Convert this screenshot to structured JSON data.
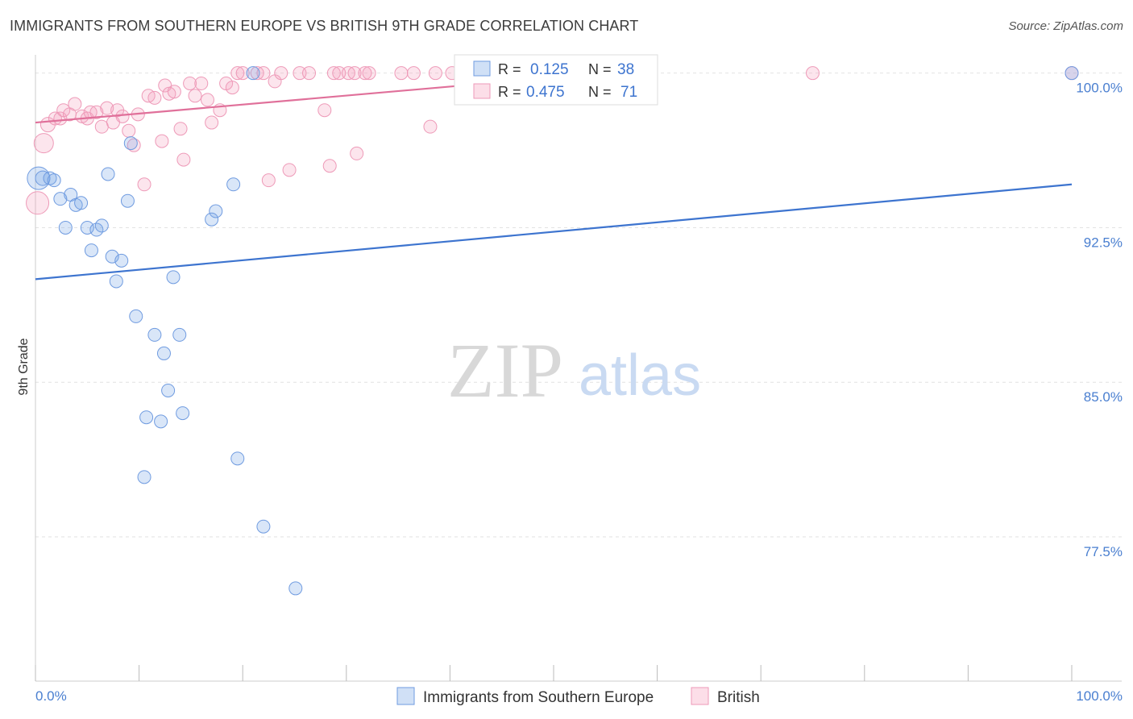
{
  "title": "IMMIGRANTS FROM SOUTHERN EUROPE VS BRITISH 9TH GRADE CORRELATION CHART",
  "source": "Source: ZipAtlas.com",
  "watermark": {
    "zip": "ZIP",
    "atlas": "atlas"
  },
  "colors": {
    "blue": "#3d74cf",
    "blue_fill": "rgba(120,165,230,0.28)",
    "blue_stroke": "#6f9be0",
    "pink": "#e0709a",
    "pink_fill": "rgba(245,160,190,0.28)",
    "pink_stroke": "#ee9ab8"
  },
  "legend_top": {
    "r_label": "R =",
    "n_label": "N =",
    "series": [
      {
        "r": "0.125",
        "n": "38"
      },
      {
        "r": "0.475",
        "n": "71"
      }
    ]
  },
  "chart_data": {
    "type": "scatter",
    "title": "IMMIGRANTS FROM SOUTHERN EUROPE VS BRITISH 9TH GRADE CORRELATION CHART",
    "xlabel": "",
    "ylabel": "9th Grade",
    "xlim": [
      0,
      100
    ],
    "ylim": [
      70.5,
      101.2
    ],
    "x_tick_labels": [
      "0.0%",
      "100.0%"
    ],
    "y_ticks": [
      77.5,
      85.0,
      92.5,
      100.0
    ],
    "y_tick_labels": [
      "77.5%",
      "85.0%",
      "92.5%",
      "100.0%"
    ],
    "grid": true,
    "legend": "top-center",
    "series": [
      {
        "name": "Immigrants from Southern Europe",
        "color": "#3d74cf",
        "trend": {
          "x": [
            0,
            100
          ],
          "y": [
            90.0,
            94.6
          ]
        },
        "points": [
          {
            "x": 0.3,
            "y": 94.9,
            "s": 14
          },
          {
            "x": 0.7,
            "y": 94.9,
            "s": 9
          },
          {
            "x": 1.4,
            "y": 94.9,
            "s": 8
          },
          {
            "x": 1.8,
            "y": 94.8,
            "s": 8
          },
          {
            "x": 2.4,
            "y": 93.9,
            "s": 8
          },
          {
            "x": 3.4,
            "y": 94.1,
            "s": 8
          },
          {
            "x": 3.9,
            "y": 93.6,
            "s": 8
          },
          {
            "x": 4.4,
            "y": 93.7,
            "s": 8
          },
          {
            "x": 2.9,
            "y": 92.5,
            "s": 8
          },
          {
            "x": 5.0,
            "y": 92.5,
            "s": 8
          },
          {
            "x": 5.9,
            "y": 92.4,
            "s": 8
          },
          {
            "x": 6.4,
            "y": 92.6,
            "s": 8
          },
          {
            "x": 5.4,
            "y": 91.4,
            "s": 8
          },
          {
            "x": 7.4,
            "y": 91.1,
            "s": 8
          },
          {
            "x": 8.3,
            "y": 90.9,
            "s": 8
          },
          {
            "x": 7.0,
            "y": 95.1,
            "s": 8
          },
          {
            "x": 9.2,
            "y": 96.6,
            "s": 8
          },
          {
            "x": 8.9,
            "y": 93.8,
            "s": 8
          },
          {
            "x": 7.8,
            "y": 89.9,
            "s": 8
          },
          {
            "x": 13.3,
            "y": 90.1,
            "s": 8
          },
          {
            "x": 9.7,
            "y": 88.2,
            "s": 8
          },
          {
            "x": 11.5,
            "y": 87.3,
            "s": 8
          },
          {
            "x": 13.9,
            "y": 87.3,
            "s": 8
          },
          {
            "x": 12.4,
            "y": 86.4,
            "s": 8
          },
          {
            "x": 12.8,
            "y": 84.6,
            "s": 8
          },
          {
            "x": 10.7,
            "y": 83.3,
            "s": 8
          },
          {
            "x": 12.1,
            "y": 83.1,
            "s": 8
          },
          {
            "x": 14.2,
            "y": 83.5,
            "s": 8
          },
          {
            "x": 10.5,
            "y": 80.4,
            "s": 8
          },
          {
            "x": 19.5,
            "y": 81.3,
            "s": 8
          },
          {
            "x": 22.0,
            "y": 78.0,
            "s": 8
          },
          {
            "x": 25.1,
            "y": 75.0,
            "s": 8
          },
          {
            "x": 17.4,
            "y": 93.3,
            "s": 8
          },
          {
            "x": 17.0,
            "y": 92.9,
            "s": 8
          },
          {
            "x": 19.1,
            "y": 94.6,
            "s": 8
          },
          {
            "x": 21.0,
            "y": 100.0,
            "s": 8
          },
          {
            "x": 44.3,
            "y": 100.0,
            "s": 8
          },
          {
            "x": 100.0,
            "y": 100.0,
            "s": 8
          }
        ]
      },
      {
        "name": "British",
        "color": "#e0709a",
        "trend": {
          "x": [
            0,
            55
          ],
          "y": [
            97.6,
            100.0
          ]
        },
        "points": [
          {
            "x": 0.2,
            "y": 93.7,
            "s": 14
          },
          {
            "x": 0.8,
            "y": 96.6,
            "s": 12
          },
          {
            "x": 1.2,
            "y": 97.5,
            "s": 9
          },
          {
            "x": 1.9,
            "y": 97.8,
            "s": 8
          },
          {
            "x": 2.4,
            "y": 97.8,
            "s": 8
          },
          {
            "x": 2.7,
            "y": 98.2,
            "s": 8
          },
          {
            "x": 3.3,
            "y": 98.0,
            "s": 8
          },
          {
            "x": 3.8,
            "y": 98.5,
            "s": 8
          },
          {
            "x": 4.5,
            "y": 97.9,
            "s": 8
          },
          {
            "x": 5.0,
            "y": 97.8,
            "s": 8
          },
          {
            "x": 5.3,
            "y": 98.1,
            "s": 8
          },
          {
            "x": 5.9,
            "y": 98.1,
            "s": 8
          },
          {
            "x": 6.4,
            "y": 97.4,
            "s": 8
          },
          {
            "x": 6.9,
            "y": 98.3,
            "s": 8
          },
          {
            "x": 7.5,
            "y": 97.6,
            "s": 8
          },
          {
            "x": 7.9,
            "y": 98.2,
            "s": 8
          },
          {
            "x": 8.4,
            "y": 97.9,
            "s": 8
          },
          {
            "x": 9.0,
            "y": 97.2,
            "s": 8
          },
          {
            "x": 9.5,
            "y": 96.5,
            "s": 8
          },
          {
            "x": 9.9,
            "y": 98.0,
            "s": 8
          },
          {
            "x": 10.5,
            "y": 94.6,
            "s": 8
          },
          {
            "x": 10.9,
            "y": 98.9,
            "s": 8
          },
          {
            "x": 11.5,
            "y": 98.8,
            "s": 8
          },
          {
            "x": 12.2,
            "y": 96.7,
            "s": 8
          },
          {
            "x": 12.5,
            "y": 99.4,
            "s": 8
          },
          {
            "x": 12.9,
            "y": 99.0,
            "s": 8
          },
          {
            "x": 13.4,
            "y": 99.1,
            "s": 8
          },
          {
            "x": 14.0,
            "y": 97.3,
            "s": 8
          },
          {
            "x": 14.3,
            "y": 95.8,
            "s": 8
          },
          {
            "x": 14.9,
            "y": 99.5,
            "s": 8
          },
          {
            "x": 15.4,
            "y": 98.9,
            "s": 8
          },
          {
            "x": 16.0,
            "y": 99.5,
            "s": 8
          },
          {
            "x": 16.6,
            "y": 98.7,
            "s": 8
          },
          {
            "x": 17.0,
            "y": 97.6,
            "s": 8
          },
          {
            "x": 17.8,
            "y": 98.2,
            "s": 8
          },
          {
            "x": 18.4,
            "y": 99.5,
            "s": 8
          },
          {
            "x": 19.0,
            "y": 99.3,
            "s": 8
          },
          {
            "x": 19.5,
            "y": 100.0,
            "s": 8
          },
          {
            "x": 20.0,
            "y": 100.0,
            "s": 8
          },
          {
            "x": 21.4,
            "y": 100.0,
            "s": 8
          },
          {
            "x": 22.0,
            "y": 100.0,
            "s": 8
          },
          {
            "x": 22.5,
            "y": 94.8,
            "s": 8
          },
          {
            "x": 23.1,
            "y": 99.6,
            "s": 8
          },
          {
            "x": 23.7,
            "y": 100.0,
            "s": 8
          },
          {
            "x": 24.5,
            "y": 95.3,
            "s": 8
          },
          {
            "x": 25.5,
            "y": 100.0,
            "s": 8
          },
          {
            "x": 26.4,
            "y": 100.0,
            "s": 8
          },
          {
            "x": 27.9,
            "y": 98.2,
            "s": 8
          },
          {
            "x": 28.4,
            "y": 95.5,
            "s": 8
          },
          {
            "x": 28.8,
            "y": 100.0,
            "s": 8
          },
          {
            "x": 29.3,
            "y": 100.0,
            "s": 8
          },
          {
            "x": 30.2,
            "y": 100.0,
            "s": 8
          },
          {
            "x": 30.8,
            "y": 100.0,
            "s": 8
          },
          {
            "x": 31.0,
            "y": 96.1,
            "s": 8
          },
          {
            "x": 31.8,
            "y": 100.0,
            "s": 8
          },
          {
            "x": 32.2,
            "y": 100.0,
            "s": 8
          },
          {
            "x": 35.3,
            "y": 100.0,
            "s": 8
          },
          {
            "x": 36.5,
            "y": 100.0,
            "s": 8
          },
          {
            "x": 38.1,
            "y": 97.4,
            "s": 8
          },
          {
            "x": 38.6,
            "y": 100.0,
            "s": 8
          },
          {
            "x": 40.2,
            "y": 100.0,
            "s": 8
          },
          {
            "x": 41.4,
            "y": 100.0,
            "s": 8
          },
          {
            "x": 42.6,
            "y": 100.0,
            "s": 8
          },
          {
            "x": 44.0,
            "y": 100.0,
            "s": 8
          },
          {
            "x": 46.5,
            "y": 100.0,
            "s": 8
          },
          {
            "x": 47.8,
            "y": 100.0,
            "s": 8
          },
          {
            "x": 48.6,
            "y": 100.0,
            "s": 8
          },
          {
            "x": 50.5,
            "y": 100.0,
            "s": 8
          },
          {
            "x": 52.0,
            "y": 100.0,
            "s": 8
          },
          {
            "x": 75.0,
            "y": 100.0,
            "s": 8
          },
          {
            "x": 100.0,
            "y": 100.0,
            "s": 8
          }
        ]
      }
    ]
  }
}
